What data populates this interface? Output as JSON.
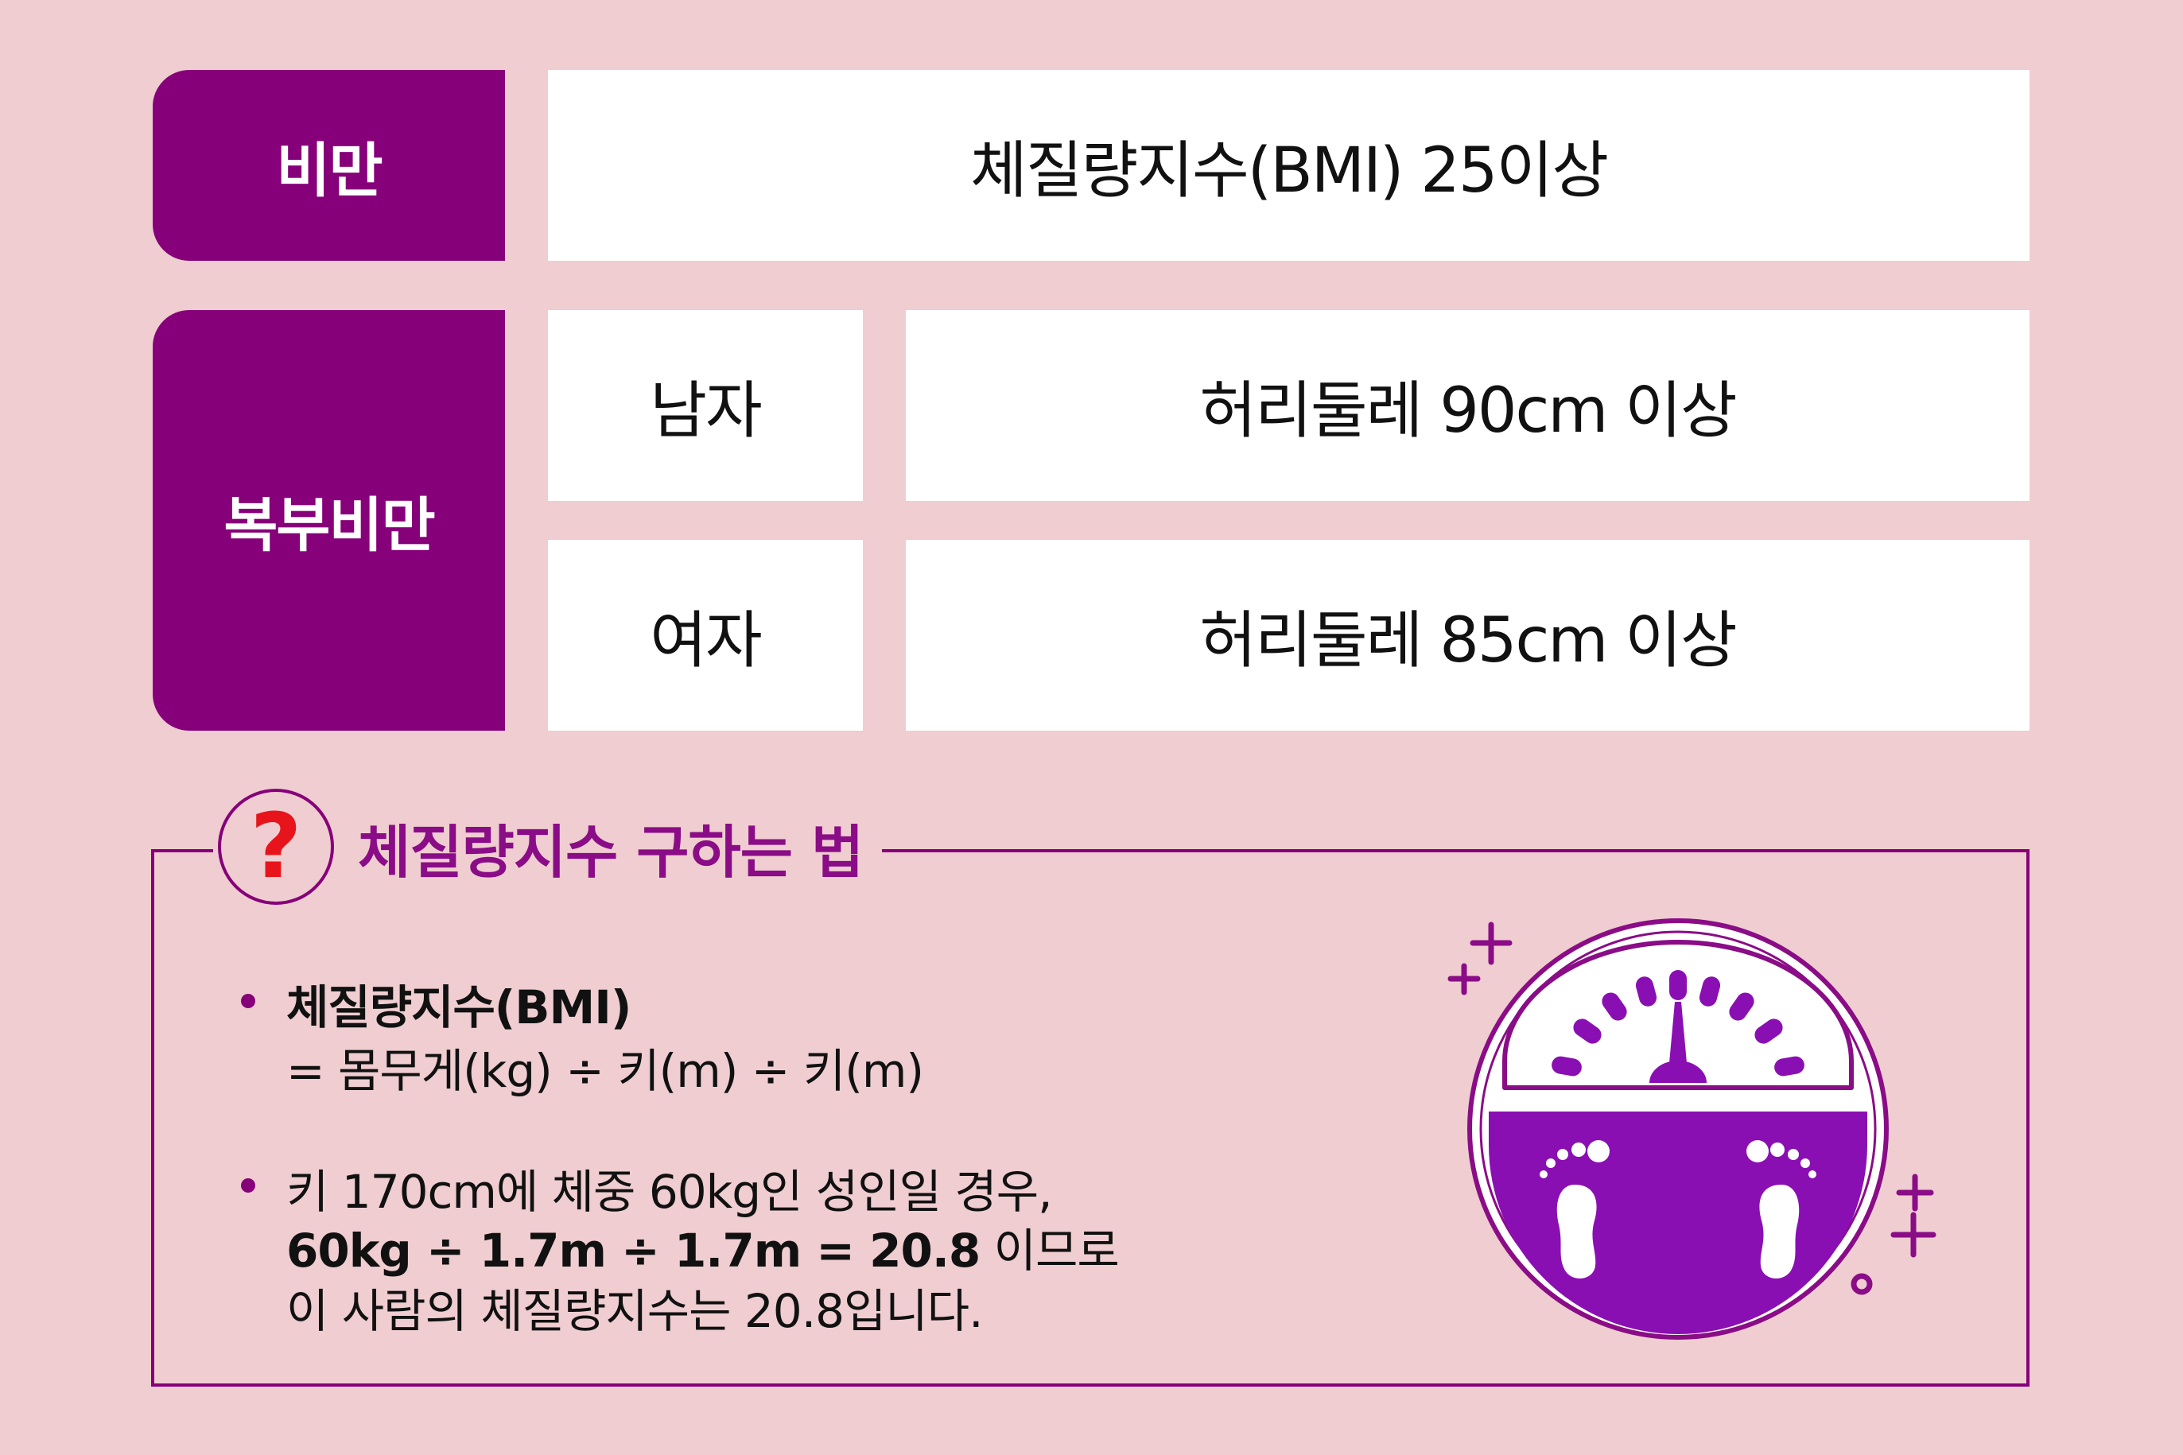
{
  "table": {
    "row1": {
      "label": "비만",
      "value": "체질량지수(BMI) 25이상"
    },
    "row2": {
      "label": "복부비만",
      "male": {
        "gender": "남자",
        "value": "허리둘레 90cm 이상"
      },
      "female": {
        "gender": "여자",
        "value": "허리둘레 85cm 이상"
      }
    }
  },
  "how_to": {
    "question_mark": "?",
    "heading": "체질량지수 구하는 법",
    "bullet1": {
      "title": "체질량지수(BMI)",
      "formula": "= 몸무게(kg) ÷ 키(m) ÷ 키(m)"
    },
    "bullet2": {
      "line1": "키 170cm에 체중 60kg인 성인일 경우,",
      "line2_bold": "60kg ÷ 1.7m ÷ 1.7m = 20.8",
      "line2_rest": " 이므로",
      "line3": "이 사람의 체질량지수는 20.8입니다."
    }
  },
  "colors": {
    "background": "#efcdd0",
    "label_purple": "#860079",
    "scale_purple": "#8a0fb3",
    "question_red": "#e8141c"
  },
  "icons": [
    "question-icon",
    "bathroom-scale-icon",
    "sparkle-icon"
  ]
}
